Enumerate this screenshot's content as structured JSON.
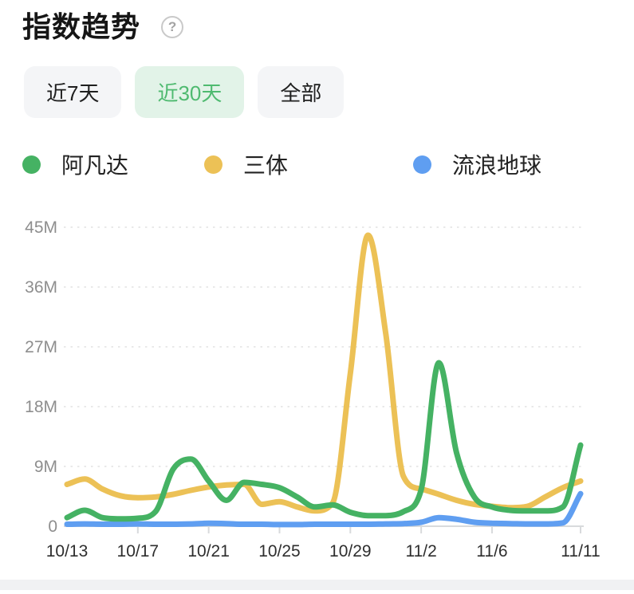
{
  "header": {
    "title": "指数趋势",
    "help_glyph": "?"
  },
  "tabs": [
    {
      "label": "近7天",
      "active": false
    },
    {
      "label": "近30天",
      "active": true
    },
    {
      "label": "全部",
      "active": false
    }
  ],
  "colors": {
    "tab_active_bg": "#e2f3e8",
    "tab_active_text": "#4fba70",
    "axis_label_y": "#8e8e8e",
    "axis_label_x": "#2e2e2e",
    "gridline": "#e9e9e9",
    "baseline": "#d8dadc"
  },
  "chart_data": {
    "type": "line",
    "title": "指数趋势",
    "unit": "M",
    "smooth": true,
    "grid": "horizontal dashed",
    "legend_position": "top",
    "x": [
      "10/13",
      "10/14",
      "10/15",
      "10/16",
      "10/17",
      "10/18",
      "10/19",
      "10/20",
      "10/21",
      "10/22",
      "10/23",
      "10/24",
      "10/25",
      "10/26",
      "10/27",
      "10/28",
      "10/29",
      "10/30",
      "10/31",
      "11/1",
      "11/2",
      "11/3",
      "11/4",
      "11/5",
      "11/6",
      "11/7",
      "11/8",
      "11/9",
      "11/10",
      "11/11"
    ],
    "x_axis": {
      "labels": [
        {
          "text": "10/13",
          "day": 0
        },
        {
          "text": "10/17",
          "day": 4
        },
        {
          "text": "10/21",
          "day": 8
        },
        {
          "text": "10/25",
          "day": 12
        },
        {
          "text": "10/29",
          "day": 16
        },
        {
          "text": "11/2",
          "day": 20
        },
        {
          "text": "11/6",
          "day": 24
        },
        {
          "text": "11/11",
          "day": 29
        }
      ],
      "tick_days": [
        4,
        8,
        12,
        16,
        20,
        24,
        29
      ]
    },
    "y_axis": {
      "tick_labels": [
        "0",
        "9M",
        "18M",
        "27M",
        "36M",
        "45M"
      ],
      "tick_values": [
        0,
        9,
        18,
        27,
        36,
        45
      ],
      "max": 45,
      "unit_scale": "millions"
    },
    "series": [
      {
        "name": "阿凡达",
        "color": "#45b263",
        "values": [
          1.3,
          2.4,
          1.3,
          1.1,
          1.2,
          2.2,
          8.6,
          10.1,
          6.8,
          3.9,
          6.6,
          6.3,
          5.8,
          4.4,
          2.9,
          3.2,
          2.1,
          1.6,
          1.6,
          2.2,
          5.5,
          24.6,
          11.0,
          4.4,
          2.9,
          2.4,
          2.3,
          2.3,
          2.9,
          12.2
        ]
      },
      {
        "name": "三体",
        "color": "#ecc156",
        "values": [
          6.3,
          7.1,
          5.6,
          4.6,
          4.3,
          4.4,
          4.8,
          5.4,
          5.9,
          6.2,
          6.3,
          3.3,
          3.7,
          2.9,
          2.3,
          3.5,
          23.0,
          43.8,
          29.0,
          7.5,
          5.6,
          4.8,
          3.9,
          3.3,
          3.0,
          2.8,
          3.0,
          4.4,
          5.8,
          6.8
        ]
      },
      {
        "name": "流浪地球",
        "color": "#5f9ef1",
        "values": [
          0.3,
          0.35,
          0.3,
          0.3,
          0.35,
          0.3,
          0.3,
          0.35,
          0.45,
          0.4,
          0.3,
          0.3,
          0.25,
          0.25,
          0.3,
          0.3,
          0.3,
          0.3,
          0.35,
          0.4,
          0.6,
          1.3,
          1.05,
          0.6,
          0.45,
          0.4,
          0.35,
          0.35,
          0.5,
          4.9
        ]
      }
    ]
  }
}
